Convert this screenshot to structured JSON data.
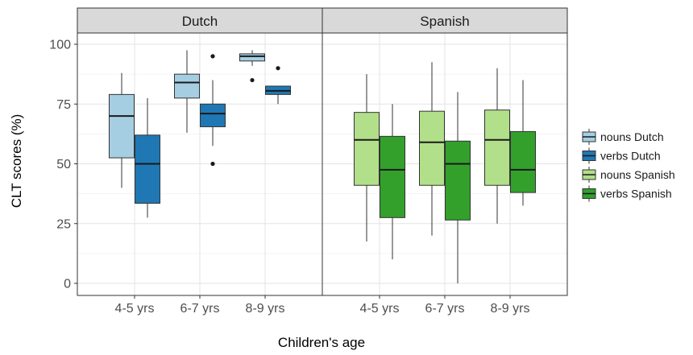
{
  "chart_data": {
    "type": "boxplot",
    "xlabel": "Children's age",
    "ylabel": "CLT scores (%)",
    "ylim": [
      0,
      100
    ],
    "yticks": [
      0,
      25,
      50,
      75,
      100
    ],
    "categories": [
      "4-5 yrs",
      "6-7 yrs",
      "8-9 yrs"
    ],
    "legend_position": "right",
    "grid": true,
    "panels": [
      {
        "title": "Dutch",
        "series": [
          {
            "name": "nouns Dutch",
            "color": "#a6cee3",
            "boxes": [
              {
                "category": "4-5 yrs",
                "min": 40,
                "q1": 52.5,
                "median": 70,
                "q3": 79,
                "max": 88,
                "outliers": []
              },
              {
                "category": "6-7 yrs",
                "min": 63,
                "q1": 77.5,
                "median": 84,
                "q3": 87.5,
                "max": 97.5,
                "outliers": []
              },
              {
                "category": "8-9 yrs",
                "min": 91,
                "q1": 93,
                "median": 95,
                "q3": 96,
                "max": 97.5,
                "outliers": [
                  85
                ]
              }
            ]
          },
          {
            "name": "verbs Dutch",
            "color": "#1f78b4",
            "boxes": [
              {
                "category": "4-5 yrs",
                "min": 27.5,
                "q1": 33.5,
                "median": 50,
                "q3": 62,
                "max": 77.5,
                "outliers": []
              },
              {
                "category": "6-7 yrs",
                "min": 57.5,
                "q1": 65.5,
                "median": 71,
                "q3": 75,
                "max": 85,
                "outliers": [
                  95,
                  50
                ]
              },
              {
                "category": "8-9 yrs",
                "min": 75,
                "q1": 79,
                "median": 80.5,
                "q3": 82.5,
                "max": 82.5,
                "outliers": [
                  90
                ]
              }
            ]
          }
        ]
      },
      {
        "title": "Spanish",
        "series": [
          {
            "name": "nouns Spanish",
            "color": "#b2df8a",
            "boxes": [
              {
                "category": "4-5 yrs",
                "min": 17.5,
                "q1": 41,
                "median": 60,
                "q3": 71.5,
                "max": 87.5,
                "outliers": []
              },
              {
                "category": "6-7 yrs",
                "min": 20,
                "q1": 41,
                "median": 59,
                "q3": 72,
                "max": 92.5,
                "outliers": []
              },
              {
                "category": "8-9 yrs",
                "min": 25,
                "q1": 41,
                "median": 60,
                "q3": 72.5,
                "max": 90,
                "outliers": []
              }
            ]
          },
          {
            "name": "verbs Spanish",
            "color": "#33a02c",
            "boxes": [
              {
                "category": "4-5 yrs",
                "min": 10,
                "q1": 27.5,
                "median": 47.5,
                "q3": 61.5,
                "max": 75,
                "outliers": []
              },
              {
                "category": "6-7 yrs",
                "min": 0,
                "q1": 26.5,
                "median": 50,
                "q3": 59.5,
                "max": 80,
                "outliers": []
              },
              {
                "category": "8-9 yrs",
                "min": 32.5,
                "q1": 38,
                "median": 47.5,
                "q3": 63.5,
                "max": 85,
                "outliers": []
              }
            ]
          }
        ]
      }
    ]
  }
}
